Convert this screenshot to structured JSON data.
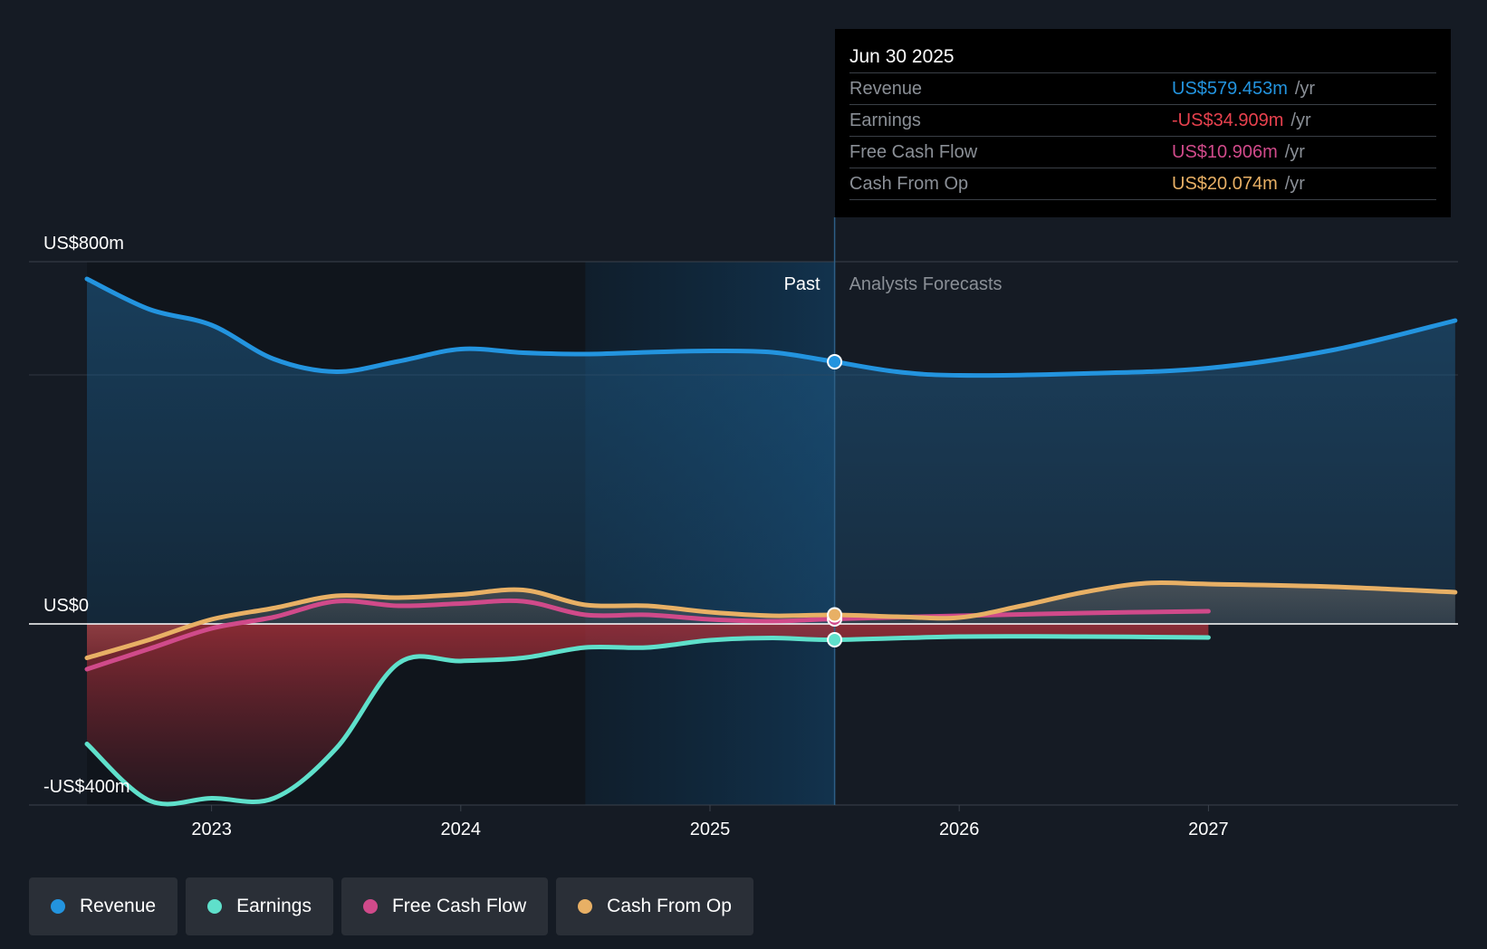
{
  "colors": {
    "background": "#151b24",
    "revenue": "#2394df",
    "earnings": "#5fe0cb",
    "fcf": "#d04a8a",
    "cfo": "#e8b065",
    "earnings_text": "#e8414e"
  },
  "tooltip": {
    "date": "Jun 30 2025",
    "rows": [
      {
        "label": "Revenue",
        "value": "US$579.453m",
        "unit": "/yr"
      },
      {
        "label": "Earnings",
        "value": "-US$34.909m",
        "unit": "/yr"
      },
      {
        "label": "Free Cash Flow",
        "value": "US$10.906m",
        "unit": "/yr"
      },
      {
        "label": "Cash From Op",
        "value": "US$20.074m",
        "unit": "/yr"
      }
    ]
  },
  "legend": [
    {
      "label": "Revenue",
      "icon": "revenue-dot-icon"
    },
    {
      "label": "Earnings",
      "icon": "earnings-dot-icon"
    },
    {
      "label": "Free Cash Flow",
      "icon": "fcf-dot-icon"
    },
    {
      "label": "Cash From Op",
      "icon": "cfo-dot-icon"
    }
  ],
  "chart_data": {
    "type": "line",
    "title": "",
    "xlabel": "",
    "ylabel": "",
    "xlim": [
      2022.5,
      2027.99
    ],
    "ylim": [
      -400,
      800
    ],
    "y_tick_labels": [
      {
        "value": 800,
        "label": "US$800m"
      },
      {
        "value": 0,
        "label": "US$0"
      },
      {
        "value": -400,
        "label": "-US$400m"
      }
    ],
    "x_ticks": [
      2023,
      2024,
      2025,
      2026,
      2027
    ],
    "x_tick_labels": [
      "2023",
      "2024",
      "2025",
      "2026",
      "2027"
    ],
    "past_label": "Past",
    "forecast_label": "Analysts Forecasts",
    "divider_x": 2025.5,
    "shaded_past_start": 2024.5,
    "series": [
      {
        "name": "Revenue",
        "color": "#2394df",
        "x": [
          2022.5,
          2022.75,
          2023.0,
          2023.25,
          2023.5,
          2023.75,
          2024.0,
          2024.25,
          2024.5,
          2024.75,
          2025.0,
          2025.25,
          2025.5,
          2025.75,
          2026.0,
          2026.5,
          2027.0,
          2027.5,
          2027.99
        ],
        "values": [
          762,
          695,
          660,
          585,
          557,
          580,
          607,
          599,
          596,
          600,
          603,
          600,
          579,
          557,
          549,
          553,
          565,
          605,
          670
        ]
      },
      {
        "name": "Earnings",
        "color": "#5fe0cb",
        "x": [
          2022.5,
          2022.75,
          2023.0,
          2023.25,
          2023.5,
          2023.75,
          2024.0,
          2024.25,
          2024.5,
          2024.75,
          2025.0,
          2025.25,
          2025.5,
          2026.0,
          2026.5,
          2027.0
        ],
        "values": [
          -265,
          -390,
          -385,
          -385,
          -275,
          -87,
          -82,
          -75,
          -52,
          -52,
          -36,
          -31,
          -35,
          -28,
          -28,
          -30
        ]
      },
      {
        "name": "Free Cash Flow",
        "color": "#d04a8a",
        "x": [
          2022.5,
          2022.75,
          2023.0,
          2023.25,
          2023.5,
          2023.75,
          2024.0,
          2024.25,
          2024.5,
          2024.75,
          2025.0,
          2025.25,
          2025.5,
          2026.0,
          2026.5,
          2027.0
        ],
        "values": [
          -100,
          -55,
          -10,
          15,
          50,
          40,
          45,
          50,
          20,
          20,
          10,
          6,
          11,
          18,
          24,
          28
        ]
      },
      {
        "name": "Cash From Op",
        "color": "#e8b065",
        "x": [
          2022.5,
          2022.75,
          2023.0,
          2023.25,
          2023.5,
          2023.75,
          2024.0,
          2024.25,
          2024.5,
          2024.75,
          2025.0,
          2025.25,
          2025.5,
          2025.75,
          2026.0,
          2026.25,
          2026.5,
          2026.75,
          2027.0,
          2027.5,
          2027.99
        ],
        "values": [
          -75,
          -35,
          10,
          35,
          62,
          58,
          65,
          75,
          42,
          40,
          26,
          18,
          20,
          16,
          14,
          40,
          70,
          90,
          88,
          82,
          70
        ]
      }
    ],
    "highlight_x": 2025.5
  }
}
